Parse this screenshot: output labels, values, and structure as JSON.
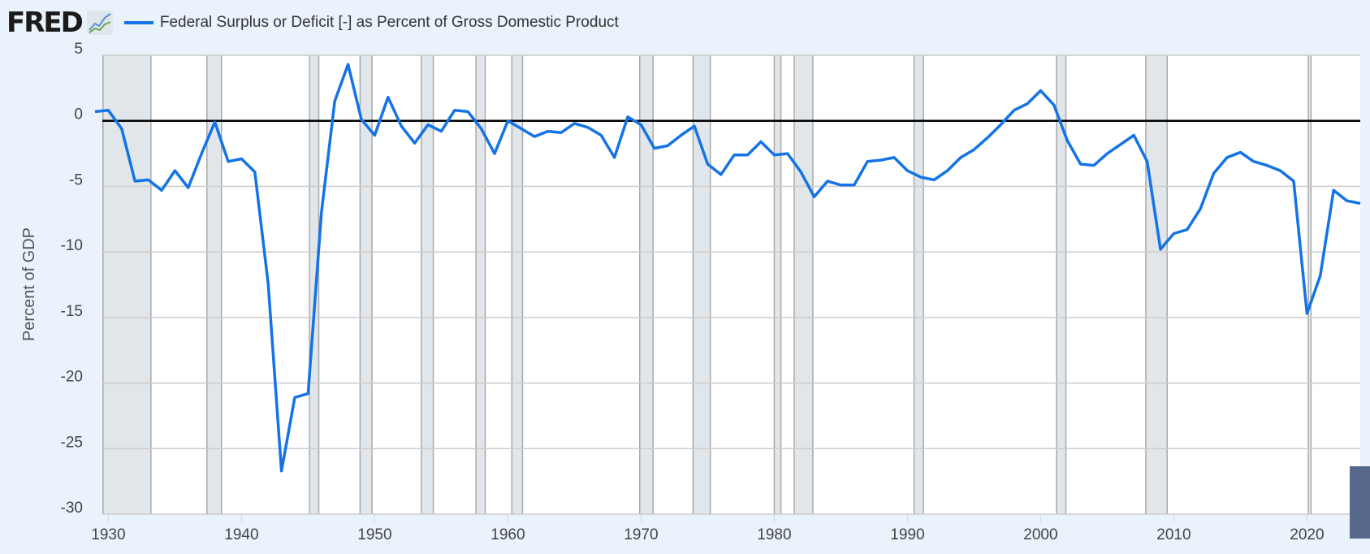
{
  "header": {
    "logo_text": "FRED",
    "legend_label": "Federal Surplus or Deficit [-] as Percent of Gross Domestic Product"
  },
  "chart_data": {
    "type": "line",
    "title": "Federal Surplus or Deficit [-] as Percent of Gross Domestic Product",
    "xlabel": "",
    "ylabel": "Percent of GDP",
    "ylim": [
      -30,
      5
    ],
    "xlim": [
      1929,
      2024
    ],
    "yticks": [
      5,
      0,
      -5,
      -10,
      -15,
      -20,
      -25,
      -30
    ],
    "xticks": [
      1930,
      1940,
      1950,
      1960,
      1970,
      1980,
      1990,
      2000,
      2010,
      2020
    ],
    "grid": true,
    "legend_position": "top-left",
    "line_color": "#1473e6",
    "x": [
      1929,
      1930,
      1931,
      1932,
      1933,
      1934,
      1935,
      1936,
      1937,
      1938,
      1939,
      1940,
      1941,
      1942,
      1943,
      1944,
      1945,
      1946,
      1947,
      1948,
      1949,
      1950,
      1951,
      1952,
      1953,
      1954,
      1955,
      1956,
      1957,
      1958,
      1959,
      1960,
      1961,
      1962,
      1963,
      1964,
      1965,
      1966,
      1967,
      1968,
      1969,
      1970,
      1971,
      1972,
      1973,
      1974,
      1975,
      1976,
      1977,
      1978,
      1979,
      1980,
      1981,
      1982,
      1983,
      1984,
      1985,
      1986,
      1987,
      1988,
      1989,
      1990,
      1991,
      1992,
      1993,
      1994,
      1995,
      1996,
      1997,
      1998,
      1999,
      2000,
      2001,
      2002,
      2003,
      2004,
      2005,
      2006,
      2007,
      2008,
      2009,
      2010,
      2011,
      2012,
      2013,
      2014,
      2015,
      2016,
      2017,
      2018,
      2019,
      2020,
      2021,
      2022,
      2023,
      2024
    ],
    "values": [
      0.7,
      0.8,
      -0.6,
      -4.6,
      -4.5,
      -5.3,
      -3.8,
      -5.1,
      -2.5,
      -0.1,
      -3.1,
      -2.9,
      -3.9,
      -12.4,
      -26.7,
      -21.1,
      -20.8,
      -7.0,
      1.5,
      4.3,
      0.1,
      -1.1,
      1.8,
      -0.4,
      -1.7,
      -0.3,
      -0.8,
      0.8,
      0.7,
      -0.6,
      -2.5,
      0.0,
      -0.6,
      -1.2,
      -0.8,
      -0.9,
      -0.2,
      -0.5,
      -1.1,
      -2.8,
      0.3,
      -0.3,
      -2.1,
      -1.9,
      -1.1,
      -0.4,
      -3.3,
      -4.1,
      -2.6,
      -2.6,
      -1.6,
      -2.6,
      -2.5,
      -3.9,
      -5.8,
      -4.6,
      -4.9,
      -4.9,
      -3.1,
      -3.0,
      -2.8,
      -3.8,
      -4.3,
      -4.5,
      -3.8,
      -2.8,
      -2.2,
      -1.3,
      -0.3,
      0.8,
      1.3,
      2.3,
      1.2,
      -1.5,
      -3.3,
      -3.4,
      -2.5,
      -1.8,
      -1.1,
      -3.1,
      -9.8,
      -8.6,
      -8.3,
      -6.7,
      -4.0,
      -2.8,
      -2.4,
      -3.1,
      -3.4,
      -3.8,
      -4.6,
      -14.7,
      -11.8,
      -5.3,
      -6.1,
      -6.3
    ],
    "recessions": [
      [
        1929.6,
        1933.2
      ],
      [
        1937.4,
        1938.5
      ],
      [
        1945.1,
        1945.8
      ],
      [
        1948.9,
        1949.8
      ],
      [
        1953.5,
        1954.4
      ],
      [
        1957.6,
        1958.3
      ],
      [
        1960.3,
        1961.1
      ],
      [
        1969.9,
        1970.9
      ],
      [
        1973.9,
        1975.2
      ],
      [
        1980.0,
        1980.5
      ],
      [
        1981.5,
        1982.9
      ],
      [
        1990.5,
        1991.2
      ],
      [
        2001.2,
        2001.9
      ],
      [
        2007.9,
        2009.5
      ],
      [
        2020.1,
        2020.3
      ]
    ]
  }
}
